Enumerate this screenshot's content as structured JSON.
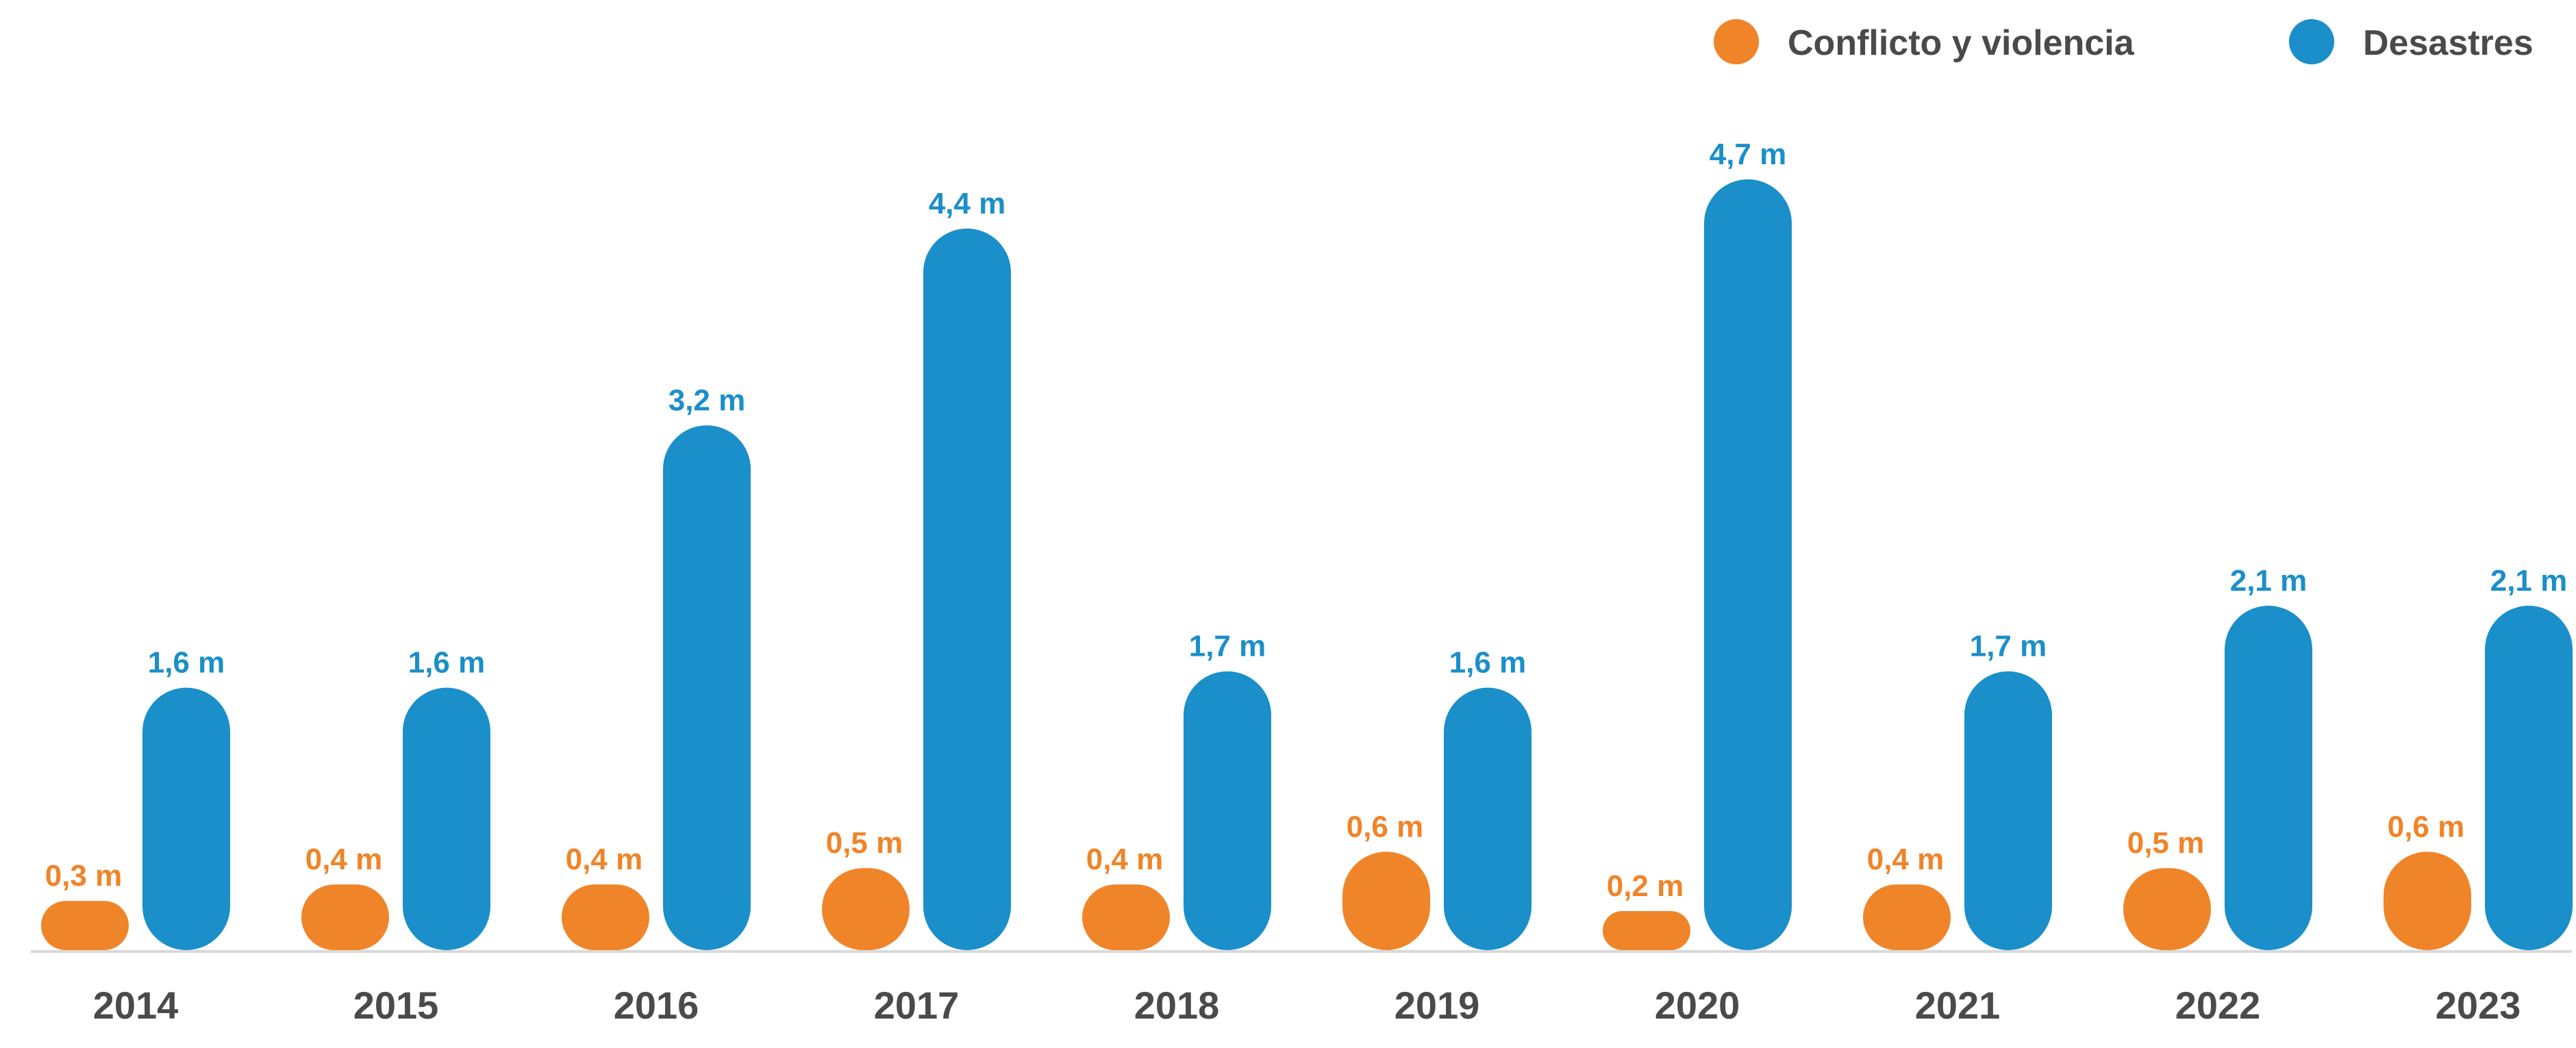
{
  "colors": {
    "conflict": "#f08428",
    "disasters": "#1a8fc9",
    "baseline": "#d9d9d9",
    "text": "#4a4a4a"
  },
  "legend": {
    "conflict_label": "Conflicto y violencia",
    "disasters_label": "Desastres"
  },
  "chart_data": {
    "type": "bar",
    "categories": [
      "2014",
      "2015",
      "2016",
      "2017",
      "2018",
      "2019",
      "2020",
      "2021",
      "2022",
      "2023"
    ],
    "series": [
      {
        "name": "Conflicto y violencia",
        "values": [
          0.3,
          0.4,
          0.4,
          0.5,
          0.4,
          0.6,
          0.2,
          0.4,
          0.5,
          0.6
        ],
        "labels": [
          "0,3 m",
          "0,4 m",
          "0,4 m",
          "0,5 m",
          "0,4 m",
          "0,6 m",
          "0,2 m",
          "0,4 m",
          "0,5 m",
          "0,6 m"
        ]
      },
      {
        "name": "Desastres",
        "values": [
          1.6,
          1.6,
          3.2,
          4.4,
          1.7,
          1.6,
          4.7,
          1.7,
          2.1,
          2.1
        ],
        "labels": [
          "1,6 m",
          "1,6 m",
          "3,2 m",
          "4,4 m",
          "1,7 m",
          "1,6 m",
          "4,7 m",
          "1,7 m",
          "2,1 m",
          "2,1 m"
        ]
      }
    ],
    "ylim": [
      0,
      4.7
    ],
    "legend_position": "top-right",
    "grid": false
  }
}
